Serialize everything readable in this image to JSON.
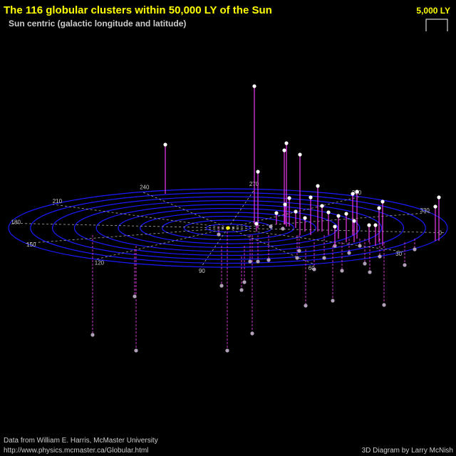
{
  "header": {
    "title": "The 116 globular clusters within 50,000 LY of the Sun",
    "subtitle": "Sun centric (galactic longitude and latitude)",
    "scale_label": "5,000 LY"
  },
  "angle_labels": [
    "0",
    "30",
    "60",
    "90",
    "120",
    "150",
    "180",
    "210",
    "240",
    "270",
    "300",
    "330"
  ],
  "footer": {
    "source": "Data from William E. Harris, McMaster University",
    "url": "http://www.physics.mcmaster.ca/Globular.html",
    "credit": "3D Diagram by Larry McNish"
  }
}
